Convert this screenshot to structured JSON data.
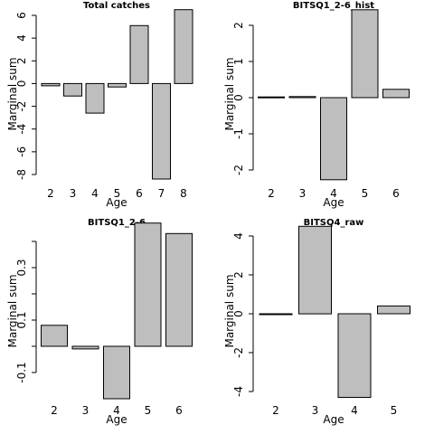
{
  "chart_data": [
    {
      "type": "bar",
      "title": "Total catches",
      "xlabel": "Age",
      "ylabel": "Marginal sum",
      "categories": [
        "2",
        "3",
        "4",
        "5",
        "6",
        "7",
        "8"
      ],
      "values": [
        -0.2,
        -1.1,
        -2.6,
        -0.3,
        5.1,
        -8.4,
        6.5
      ],
      "ylim": [
        -8,
        6
      ],
      "yticks": [
        "-8",
        "-6",
        "-4",
        "-2",
        "0",
        "2",
        "4",
        "6"
      ],
      "ytick_values": [
        -8,
        -6,
        -4,
        -2,
        0,
        2,
        4,
        6
      ]
    },
    {
      "type": "bar",
      "title": "BITSQ1_2-6_hist",
      "xlabel": "Age",
      "ylabel": "Marginal sum",
      "categories": [
        "2",
        "3",
        "4",
        "5",
        "6"
      ],
      "values": [
        0.02,
        0.03,
        -2.27,
        2.43,
        0.23
      ],
      "ylim": [
        -2,
        2
      ],
      "yticks": [
        "-2",
        "-1",
        "0",
        "1",
        "2"
      ],
      "ytick_values": [
        -2,
        -1,
        0,
        1,
        2
      ]
    },
    {
      "type": "bar",
      "title": "BITSQ1_2-6",
      "xlabel": "Age",
      "ylabel": "Marginal sum",
      "categories": [
        "2",
        "3",
        "4",
        "5",
        "6"
      ],
      "values": [
        0.08,
        -0.01,
        -0.2,
        0.47,
        0.43
      ],
      "ylim": [
        -0.1,
        0.4
      ],
      "yticks": [
        "-0.1",
        "0.1",
        "0.3"
      ],
      "ytick_values": [
        -0.1,
        0.1,
        0.3
      ],
      "minor_tick_values": [
        0.0,
        0.2,
        0.4
      ]
    },
    {
      "type": "bar",
      "title": "BITSQ4_raw",
      "xlabel": "Age",
      "ylabel": "Marginal sum",
      "categories": [
        "2",
        "3",
        "4",
        "5"
      ],
      "values": [
        0.0,
        4.5,
        -4.3,
        0.4
      ],
      "ylim": [
        -4,
        4
      ],
      "yticks": [
        "-4",
        "-2",
        "0",
        "2",
        "4"
      ],
      "ytick_values": [
        -4,
        -2,
        0,
        2,
        4
      ]
    }
  ]
}
